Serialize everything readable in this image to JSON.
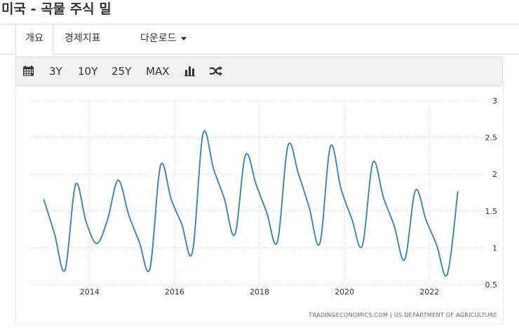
{
  "page": {
    "title": "미국 - 곡물 주식 밀"
  },
  "tabs": [
    {
      "label": "개요",
      "active": true
    },
    {
      "label": "경제지표"
    },
    {
      "label": "다운로드"
    }
  ],
  "toolbar": {
    "icons": [
      "calendar-icon",
      "bar-chart-icon",
      "shuffle-icon"
    ],
    "ranges": [
      "3Y",
      "10Y",
      "25Y",
      "MAX"
    ]
  },
  "colors": {
    "line": "#4a86b4",
    "grid": "#cccccc",
    "axis_text": "#333333"
  },
  "chart_data": {
    "type": "line",
    "title": "",
    "xlabel": "",
    "ylabel": "",
    "xlim": [
      2012.6,
      2023.3
    ],
    "ylim": [
      0.5,
      3
    ],
    "x_ticks": [
      "2014",
      "2016",
      "2018",
      "2020",
      "2022"
    ],
    "y_ticks": [
      "3",
      "2.5",
      "2",
      "1.5",
      "1",
      "0.5"
    ],
    "grid": true,
    "y_axis_side": "right",
    "series": [
      {
        "name": "",
        "points": [
          [
            2012.92,
            1.66
          ],
          [
            2013.17,
            1.2
          ],
          [
            2013.42,
            0.7
          ],
          [
            2013.67,
            1.86
          ],
          [
            2013.92,
            1.35
          ],
          [
            2014.17,
            1.06
          ],
          [
            2014.42,
            1.38
          ],
          [
            2014.67,
            1.92
          ],
          [
            2014.92,
            1.45
          ],
          [
            2015.17,
            1.08
          ],
          [
            2015.42,
            0.72
          ],
          [
            2015.67,
            2.12
          ],
          [
            2015.92,
            1.66
          ],
          [
            2016.17,
            1.32
          ],
          [
            2016.42,
            0.94
          ],
          [
            2016.67,
            2.55
          ],
          [
            2016.92,
            2.07
          ],
          [
            2017.17,
            1.67
          ],
          [
            2017.42,
            1.18
          ],
          [
            2017.67,
            2.26
          ],
          [
            2017.92,
            1.86
          ],
          [
            2018.17,
            1.48
          ],
          [
            2018.42,
            1.08
          ],
          [
            2018.67,
            2.39
          ],
          [
            2018.92,
            2.0
          ],
          [
            2019.17,
            1.55
          ],
          [
            2019.42,
            1.06
          ],
          [
            2019.67,
            2.38
          ],
          [
            2019.92,
            1.8
          ],
          [
            2020.17,
            1.4
          ],
          [
            2020.42,
            1.03
          ],
          [
            2020.67,
            2.16
          ],
          [
            2020.92,
            1.68
          ],
          [
            2021.17,
            1.3
          ],
          [
            2021.42,
            0.84
          ],
          [
            2021.67,
            1.78
          ],
          [
            2021.92,
            1.38
          ],
          [
            2022.17,
            1.04
          ],
          [
            2022.42,
            0.64
          ],
          [
            2022.67,
            1.77
          ]
        ]
      }
    ],
    "source": "TRADINGECONOMICS.COM  |  US DEPARTMENT OF AGRICULTURE"
  }
}
